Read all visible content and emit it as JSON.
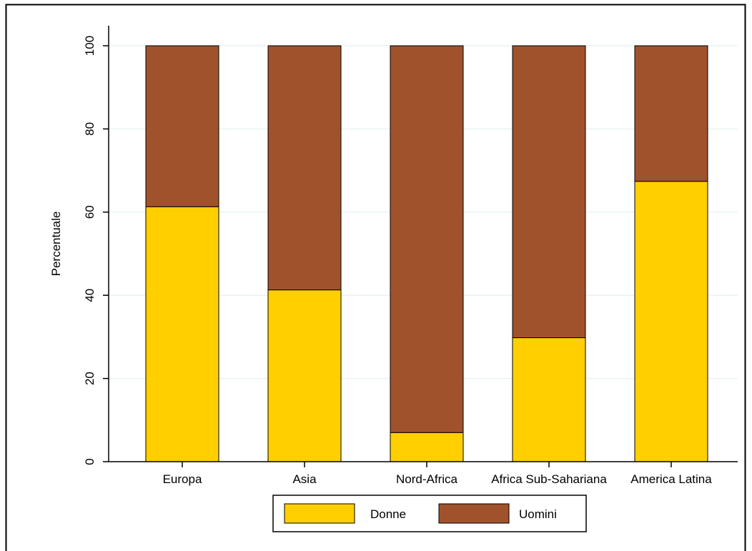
{
  "chart_data": {
    "type": "bar",
    "stacked": true,
    "categories": [
      "Europa",
      "Asia",
      "Nord-Africa",
      "Africa Sub-Sahariana",
      "America Latina"
    ],
    "series": [
      {
        "name": "Donne",
        "values": [
          61.3,
          41.3,
          7.0,
          29.8,
          67.4
        ]
      },
      {
        "name": "Uomini",
        "values": [
          38.7,
          58.7,
          93.0,
          70.2,
          32.6
        ]
      }
    ],
    "title": "",
    "xlabel": "",
    "ylabel": "Percentuale",
    "ylim": [
      0,
      100
    ],
    "yticks": [
      "0",
      "20",
      "40",
      "60",
      "80",
      "100"
    ],
    "grid": true,
    "legend": "bottom",
    "colors": {
      "Donne": "#FFCF00",
      "Uomini": "#A0522D",
      "grid": "#EAF2F3",
      "border": "#000000"
    }
  }
}
